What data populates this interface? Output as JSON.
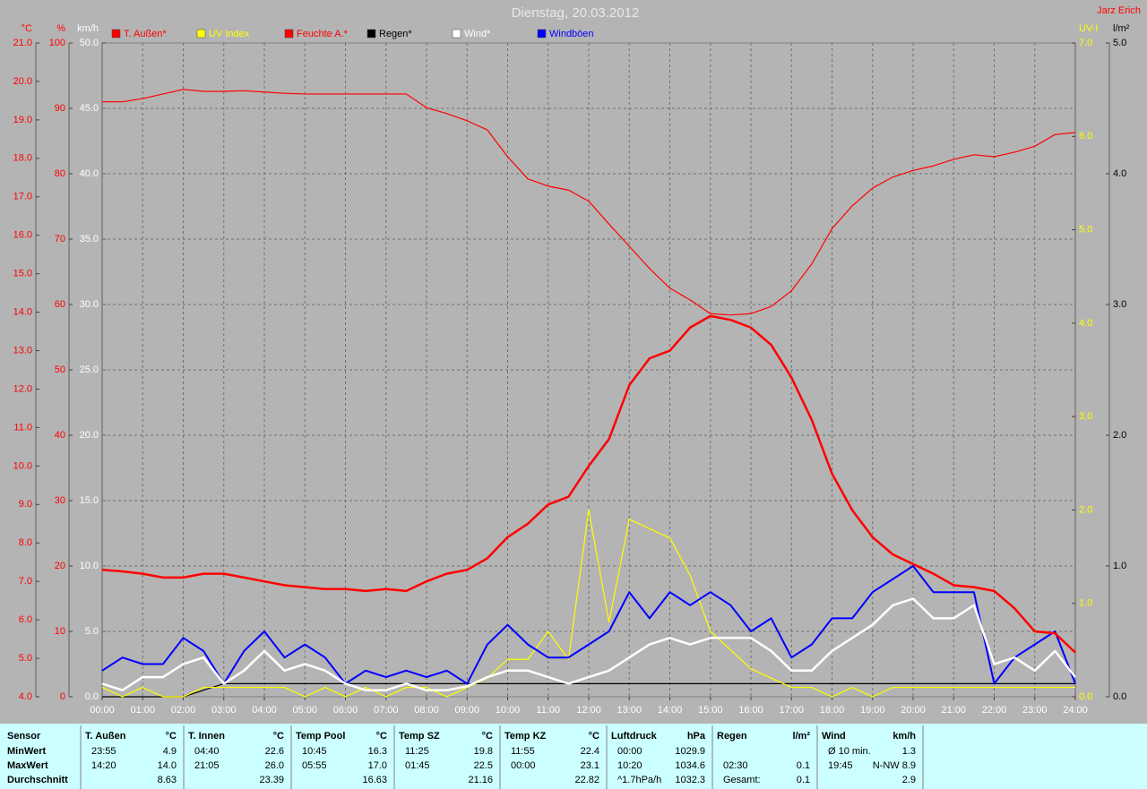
{
  "chart_data": {
    "type": "line",
    "title": "Dienstag, 20.03.2012",
    "author": "Jarz Erich",
    "x": [
      0,
      0.5,
      1,
      1.5,
      2,
      2.5,
      3,
      3.5,
      4,
      4.5,
      5,
      5.5,
      6,
      6.5,
      7,
      7.5,
      8,
      8.5,
      9,
      9.5,
      10,
      10.5,
      11,
      11.5,
      12,
      12.5,
      13,
      13.5,
      14,
      14.5,
      15,
      15.5,
      16,
      16.5,
      17,
      17.5,
      18,
      18.5,
      19,
      19.5,
      20,
      20.5,
      21,
      21.5,
      22,
      22.5,
      23,
      23.5,
      24
    ],
    "xlim": [
      0,
      24
    ],
    "xticks": [
      {
        "value": 0,
        "label": "00:00"
      },
      {
        "value": 1,
        "label": "01:00"
      },
      {
        "value": 2,
        "label": "02:00"
      },
      {
        "value": 3,
        "label": "03:00"
      },
      {
        "value": 4,
        "label": "04:00"
      },
      {
        "value": 5,
        "label": "05:00"
      },
      {
        "value": 6,
        "label": "06:00"
      },
      {
        "value": 7,
        "label": "07:00"
      },
      {
        "value": 8,
        "label": "08:00"
      },
      {
        "value": 9,
        "label": "09:00"
      },
      {
        "value": 10,
        "label": "10:00"
      },
      {
        "value": 11,
        "label": "11:00"
      },
      {
        "value": 12,
        "label": "12:00"
      },
      {
        "value": 13,
        "label": "13:00"
      },
      {
        "value": 14,
        "label": "14:00"
      },
      {
        "value": 15,
        "label": "15:00"
      },
      {
        "value": 16,
        "label": "16:00"
      },
      {
        "value": 17,
        "label": "17:00"
      },
      {
        "value": 18,
        "label": "18:00"
      },
      {
        "value": 19,
        "label": "19:00"
      },
      {
        "value": 20,
        "label": "20:00"
      },
      {
        "value": 21,
        "label": "21:00"
      },
      {
        "value": 22,
        "label": "22:00"
      },
      {
        "value": 23,
        "label": "23:00"
      },
      {
        "value": 24,
        "label": "24:00"
      }
    ],
    "grid": true,
    "axes": [
      {
        "label": "°C",
        "side": "left",
        "color": "#ff0000",
        "lim": [
          4,
          21
        ],
        "ticks": [
          {
            "value": 4,
            "label": "4.0"
          },
          {
            "value": 5,
            "label": "5.0"
          },
          {
            "value": 6,
            "label": "6.0"
          },
          {
            "value": 7,
            "label": "7.0"
          },
          {
            "value": 8,
            "label": "8.0"
          },
          {
            "value": 9,
            "label": "9.0"
          },
          {
            "value": 10,
            "label": "10.0"
          },
          {
            "value": 11,
            "label": "11.0"
          },
          {
            "value": 12,
            "label": "12.0"
          },
          {
            "value": 13,
            "label": "13.0"
          },
          {
            "value": 14,
            "label": "14.0"
          },
          {
            "value": 15,
            "label": "15.0"
          },
          {
            "value": 16,
            "label": "16.0"
          },
          {
            "value": 17,
            "label": "17.0"
          },
          {
            "value": 18,
            "label": "18.0"
          },
          {
            "value": 19,
            "label": "19.0"
          },
          {
            "value": 20,
            "label": "20.0"
          },
          {
            "value": 21,
            "label": "21.0"
          }
        ]
      },
      {
        "label": "%",
        "side": "left",
        "color": "#ff0000",
        "lim": [
          0,
          100
        ],
        "ticks": [
          0,
          10,
          20,
          30,
          40,
          50,
          60,
          70,
          80,
          90,
          100
        ]
      },
      {
        "label": "km/h",
        "side": "left",
        "color": "#ffffff",
        "lim": [
          0,
          50
        ],
        "ticks": [
          {
            "value": 0,
            "label": "0.0"
          },
          {
            "value": 5,
            "label": "5.0"
          },
          {
            "value": 10,
            "label": "10.0"
          },
          {
            "value": 15,
            "label": "15.0"
          },
          {
            "value": 20,
            "label": "20.0"
          },
          {
            "value": 25,
            "label": "25.0"
          },
          {
            "value": 30,
            "label": "30.0"
          },
          {
            "value": 35,
            "label": "35.0"
          },
          {
            "value": 40,
            "label": "40.0"
          },
          {
            "value": 45,
            "label": "45.0"
          },
          {
            "value": 50,
            "label": "50.0"
          }
        ]
      },
      {
        "label": "UV-I",
        "side": "right",
        "color": "#ffff00",
        "lim": [
          0,
          7
        ],
        "ticks": [
          {
            "value": 0,
            "label": "0.0"
          },
          {
            "value": 1,
            "label": "1.0"
          },
          {
            "value": 2,
            "label": "2.0"
          },
          {
            "value": 3,
            "label": "3.0"
          },
          {
            "value": 4,
            "label": "4.0"
          },
          {
            "value": 5,
            "label": "5.0"
          },
          {
            "value": 6,
            "label": "6.0"
          },
          {
            "value": 7,
            "label": "7.0"
          }
        ]
      },
      {
        "label": "l/m²",
        "side": "right",
        "color": "#000000",
        "lim": [
          0,
          5
        ],
        "ticks": [
          {
            "value": 0,
            "label": "0.0"
          },
          {
            "value": 1,
            "label": "1.0"
          },
          {
            "value": 2,
            "label": "2.0"
          },
          {
            "value": 3,
            "label": "3.0"
          },
          {
            "value": 4,
            "label": "4.0"
          },
          {
            "value": 5,
            "label": "5.0"
          }
        ]
      }
    ],
    "series": [
      {
        "name": "T. Außen*",
        "color": "#ff0000",
        "axis": 0,
        "values": [
          7.3,
          7.26,
          7.2,
          7.1,
          7.1,
          7.2,
          7.2,
          7.1,
          7.0,
          6.9,
          6.85,
          6.8,
          6.8,
          6.75,
          6.8,
          6.75,
          7.0,
          7.2,
          7.3,
          7.6,
          8.15,
          8.5,
          9.0,
          9.2,
          10.0,
          10.7,
          12.1,
          12.8,
          13.0,
          13.6,
          13.9,
          13.8,
          13.6,
          13.15,
          12.3,
          11.2,
          9.8,
          8.85,
          8.15,
          7.7,
          7.45,
          7.2,
          6.9,
          6.85,
          6.75,
          6.3,
          5.7,
          5.65,
          5.15
        ]
      },
      {
        "name": "UV Index",
        "color": "#ffff00",
        "axis": 3,
        "values": [
          0.1,
          0.0,
          0.1,
          0.0,
          0.0,
          0.1,
          0.1,
          0.1,
          0.1,
          0.1,
          0.0,
          0.1,
          0.0,
          0.1,
          0.0,
          0.1,
          0.1,
          0.0,
          0.1,
          0.2,
          0.4,
          0.4,
          0.7,
          0.4,
          2.0,
          0.8,
          1.9,
          1.8,
          1.7,
          1.3,
          0.7,
          0.5,
          0.3,
          0.2,
          0.1,
          0.1,
          0.0,
          0.1,
          0.0,
          0.1,
          0.1,
          0.1,
          0.1,
          0.1,
          0.1,
          0.1,
          0.1,
          0.1,
          0.1
        ]
      },
      {
        "name": "Feuchte A.*",
        "color": "#ff0000",
        "axis": 1,
        "values": [
          91,
          91,
          91.5,
          92.2,
          92.9,
          92.6,
          92.6,
          92.7,
          92.5,
          92.3,
          92.2,
          92.2,
          92.2,
          92.2,
          92.2,
          92.2,
          90.1,
          89.2,
          88.1,
          86.7,
          82.6,
          79.2,
          78.1,
          77.5,
          75.8,
          72.3,
          68.9,
          65.5,
          62.5,
          60.7,
          58.6,
          58.4,
          58.6,
          59.7,
          62.1,
          66.2,
          71.6,
          75.1,
          77.8,
          79.5,
          80.5,
          81.2,
          82.2,
          82.9,
          82.6,
          83.3,
          84.2,
          86.0,
          86.3
        ]
      },
      {
        "name": "Regen*",
        "color": "#000000",
        "axis": 4,
        "values": [
          0,
          0,
          0,
          0,
          0,
          0.05,
          0.1,
          0.1,
          0.1,
          0.1,
          0.1,
          0.1,
          0.1,
          0.1,
          0.1,
          0.1,
          0.1,
          0.1,
          0.1,
          0.1,
          0.1,
          0.1,
          0.1,
          0.1,
          0.1,
          0.1,
          0.1,
          0.1,
          0.1,
          0.1,
          0.1,
          0.1,
          0.1,
          0.1,
          0.1,
          0.1,
          0.1,
          0.1,
          0.1,
          0.1,
          0.1,
          0.1,
          0.1,
          0.1,
          0.1,
          0.1,
          0.1,
          0.1,
          0.1
        ]
      },
      {
        "name": "Wind*",
        "color": "#ffffff",
        "axis": 2,
        "values": [
          1,
          0.5,
          1.5,
          1.5,
          2.5,
          3.0,
          1.0,
          2.0,
          3.5,
          2.0,
          2.5,
          2.0,
          1.0,
          0.5,
          0.5,
          1.0,
          0.5,
          0.5,
          0.8,
          1.5,
          2.0,
          2.0,
          1.5,
          1.0,
          1.5,
          2.0,
          3.0,
          4.0,
          4.5,
          4.0,
          4.5,
          4.5,
          4.5,
          3.5,
          2.0,
          2.0,
          3.5,
          4.5,
          5.5,
          7.0,
          7.5,
          6.0,
          6.0,
          7.0,
          2.5,
          3.0,
          2.0,
          3.5,
          1.5
        ]
      },
      {
        "name": "Windböen",
        "color": "#0000ff",
        "axis": 2,
        "values": [
          2,
          3,
          2.5,
          2.5,
          4.5,
          3.5,
          1,
          3.5,
          5,
          3,
          4,
          3,
          1,
          2,
          1.5,
          2,
          1.5,
          2,
          1,
          4,
          5.5,
          4,
          3,
          3,
          4,
          5,
          8,
          6,
          8,
          7,
          8,
          7,
          5,
          6,
          3,
          4,
          6,
          6,
          8,
          9,
          10,
          8,
          8,
          8,
          1,
          3,
          4,
          5,
          1
        ]
      }
    ]
  },
  "stats": {
    "row_labels": [
      "Sensor",
      "MinWert",
      "MaxWert",
      "Durchschnitt"
    ],
    "columns": [
      {
        "name": "T. Außen",
        "unit": "°C",
        "rows": [
          [
            "23:55",
            "4.9"
          ],
          [
            "14:20",
            "14.0"
          ],
          [
            null,
            "8.63"
          ]
        ]
      },
      {
        "name": "T. Innen",
        "unit": "°C",
        "rows": [
          [
            "04:40",
            "22.6"
          ],
          [
            "21:05",
            "26.0"
          ],
          [
            null,
            "23.39"
          ]
        ]
      },
      {
        "name": "Temp Pool",
        "unit": "°C",
        "rows": [
          [
            "10:45",
            "16.3"
          ],
          [
            "05:55",
            "17.0"
          ],
          [
            null,
            "16.63"
          ]
        ]
      },
      {
        "name": "Temp SZ",
        "unit": "°C",
        "rows": [
          [
            "11:25",
            "19.8"
          ],
          [
            "01:45",
            "22.5"
          ],
          [
            null,
            "21.16"
          ]
        ]
      },
      {
        "name": "Temp KZ",
        "unit": "°C",
        "rows": [
          [
            "11:55",
            "22.4"
          ],
          [
            "00:00",
            "23.1"
          ],
          [
            null,
            "22.82"
          ]
        ]
      },
      {
        "name": "Luftdruck",
        "unit": "hPa",
        "rows": [
          [
            "00:00",
            "1029.9"
          ],
          [
            "10:20",
            "1034.6"
          ],
          [
            "^1.7hPa/h",
            "1032.3"
          ]
        ]
      },
      {
        "name": "Regen",
        "unit": "l/m²",
        "rows": [
          [
            null,
            null
          ],
          [
            "02:30",
            "0.1"
          ],
          [
            "Gesamt:",
            "0.1"
          ]
        ]
      },
      {
        "name": "Wind",
        "unit": "km/h",
        "rows": [
          [
            "Ø 10 min.",
            "1.3"
          ],
          [
            "19:45",
            "N-NW 8.9"
          ],
          [
            null,
            "2.9"
          ]
        ]
      }
    ]
  }
}
